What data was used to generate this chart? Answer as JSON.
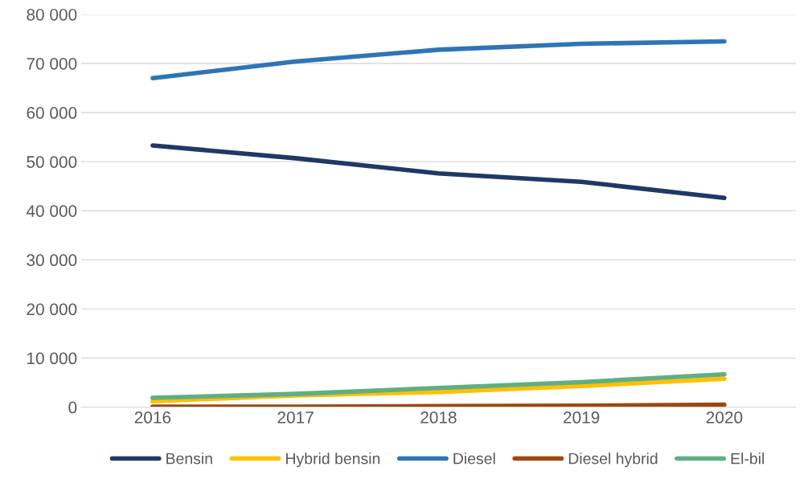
{
  "chart_data": {
    "type": "line",
    "categories": [
      "2016",
      "2017",
      "2018",
      "2019",
      "2020"
    ],
    "series": [
      {
        "name": "Bensin",
        "color": "#203864",
        "values": [
          53300,
          50700,
          47600,
          45900,
          42600
        ]
      },
      {
        "name": "Hybrid bensin",
        "color": "#ffc000",
        "values": [
          1200,
          2400,
          3100,
          4300,
          5800
        ]
      },
      {
        "name": "Diesel",
        "color": "#2e75b6",
        "values": [
          67000,
          70400,
          72800,
          74000,
          74500
        ]
      },
      {
        "name": "Diesel hybrid",
        "color": "#9e480e",
        "values": [
          100,
          100,
          200,
          300,
          500
        ]
      },
      {
        "name": "El-bil",
        "color": "#5fae84",
        "values": [
          1900,
          2700,
          3900,
          5100,
          6700
        ]
      }
    ],
    "ylim": [
      0,
      80000
    ],
    "yticks": [
      {
        "value": 0,
        "label": "0"
      },
      {
        "value": 10000,
        "label": "10 000"
      },
      {
        "value": 20000,
        "label": "20 000"
      },
      {
        "value": 30000,
        "label": "30 000"
      },
      {
        "value": 40000,
        "label": "40 000"
      },
      {
        "value": 50000,
        "label": "50 000"
      },
      {
        "value": 60000,
        "label": "60 000"
      },
      {
        "value": 70000,
        "label": "70 000"
      },
      {
        "value": 80000,
        "label": "80 000"
      }
    ],
    "grid": "y",
    "legend": "bottom",
    "marker": "none",
    "line_style": "solid"
  }
}
